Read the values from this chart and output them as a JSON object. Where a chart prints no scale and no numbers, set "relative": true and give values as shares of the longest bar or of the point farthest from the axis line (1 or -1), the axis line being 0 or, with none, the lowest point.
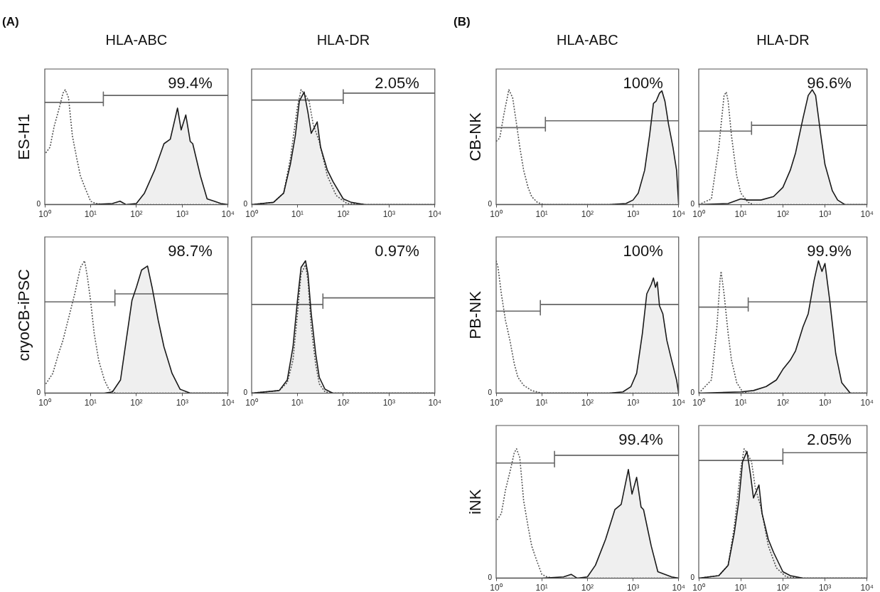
{
  "chart_data": [
    {
      "type": "area",
      "title": "HLA-ABC",
      "ylabel": "ES-H1",
      "relative": true,
      "log": "x",
      "marker": "none",
      "annotations": [
        "0",
        "(A)",
        "99.4%"
      ],
      "xlim": [
        1,
        10000
      ],
      "xticks": [
        {
          "value": 1,
          "label": "10⁰"
        },
        {
          "value": 10,
          "label": "10¹"
        },
        {
          "value": 100,
          "label": "10²"
        },
        {
          "value": 1000,
          "label": "10³"
        },
        {
          "value": 10000,
          "label": "10⁴"
        }
      ],
      "series": [
        {
          "type": "area",
          "color": "#1a1a1a",
          "x": [
            1,
            10,
            30,
            44,
            60,
            100,
            150,
            250,
            400,
            550,
            790,
            950,
            1200,
            1500,
            1700,
            2500,
            3500,
            5000,
            7000,
            10000
          ],
          "values": [
            0,
            0,
            0.01,
            0.03,
            0,
            0.01,
            0.1,
            0.3,
            0.53,
            0.57,
            0.84,
            0.65,
            0.78,
            0.55,
            0.53,
            0.25,
            0.05,
            0.03,
            0.01,
            0
          ]
        },
        {
          "type": "line",
          "color": "#555555",
          "line_style": "dotted",
          "x": [
            1.05,
            1.3,
            1.6,
            2,
            2.5,
            2.8,
            3.3,
            4,
            5,
            6,
            7.5,
            10,
            13,
            20,
            10000
          ],
          "values": [
            0.45,
            0.5,
            0.68,
            0.82,
            0.97,
            1,
            0.93,
            0.6,
            0.4,
            0.25,
            0.15,
            0.03,
            0.01,
            0,
            0
          ]
        },
        {
          "type": "line",
          "color": "#666666",
          "x": [
            1,
            19,
            19,
            19,
            19,
            19,
            19,
            10000
          ],
          "values": [
            0.89,
            0.89,
            0.86,
            0.92,
            0.92,
            0.98,
            0.95,
            0.95
          ]
        }
      ]
    },
    {
      "type": "area",
      "title": "HLA-DR",
      "relative": true,
      "log": "x",
      "marker": "none",
      "annotations": [
        "0",
        "2.05%"
      ],
      "xlim": [
        1,
        10000
      ],
      "xticks": [
        {
          "value": 1,
          "label": "10⁰"
        },
        {
          "value": 10,
          "label": "10¹"
        },
        {
          "value": 100,
          "label": "10²"
        },
        {
          "value": 1000,
          "label": "10³"
        },
        {
          "value": 10000,
          "label": "10⁴"
        }
      ],
      "series": [
        {
          "type": "area",
          "color": "#1a1a1a",
          "x": [
            1,
            3,
            5,
            7,
            9,
            11,
            14,
            17,
            20,
            27,
            32,
            45,
            60,
            100,
            150,
            300,
            10000
          ],
          "values": [
            0,
            0.02,
            0.1,
            0.35,
            0.6,
            0.9,
            0.98,
            0.8,
            0.62,
            0.72,
            0.5,
            0.3,
            0.2,
            0.05,
            0.02,
            0,
            0
          ]
        },
        {
          "type": "line",
          "color": "#555555",
          "line_style": "dotted",
          "x": [
            1,
            3,
            5,
            7,
            10,
            12,
            15,
            18,
            22,
            30,
            45,
            70,
            120,
            300,
            10000
          ],
          "values": [
            0,
            0.02,
            0.1,
            0.4,
            0.85,
            1,
            0.95,
            0.9,
            0.7,
            0.55,
            0.25,
            0.08,
            0.01,
            0,
            0
          ]
        },
        {
          "type": "line",
          "color": "#666666",
          "x": [
            1,
            100,
            100,
            100,
            100,
            100,
            100,
            10000
          ],
          "values": [
            0.91,
            0.91,
            0.88,
            0.94,
            0.94,
            1,
            0.97,
            0.97
          ]
        }
      ]
    },
    {
      "type": "area",
      "title": "HLA-ABC",
      "ylabel": "CB-NK",
      "relative": true,
      "log": "x",
      "marker": "none",
      "annotations": [
        "0",
        "(B)",
        "100%"
      ],
      "xlim": [
        1,
        10000
      ],
      "xticks": [
        {
          "value": 1,
          "label": "10⁰"
        },
        {
          "value": 10,
          "label": "10¹"
        },
        {
          "value": 100,
          "label": "10²"
        },
        {
          "value": 1000,
          "label": "10³"
        },
        {
          "value": 10000,
          "label": "10⁴"
        }
      ],
      "series": [
        {
          "type": "area",
          "color": "#1a1a1a",
          "x": [
            1,
            300,
            700,
            1000,
            1300,
            1800,
            2300,
            2800,
            3200,
            3800,
            4300,
            5000,
            6000,
            7500,
            9000,
            10000
          ],
          "values": [
            0,
            0,
            0.01,
            0.04,
            0.1,
            0.3,
            0.6,
            0.88,
            0.9,
            0.97,
            0.99,
            0.9,
            0.7,
            0.5,
            0.3,
            0
          ]
        },
        {
          "type": "line",
          "color": "#555555",
          "line_style": "dotted",
          "x": [
            1,
            1.2,
            1.5,
            1.9,
            2.3,
            2.8,
            3.3,
            4,
            5,
            6,
            8,
            11,
            10000
          ],
          "values": [
            0.55,
            0.58,
            0.8,
            1,
            0.93,
            0.7,
            0.5,
            0.3,
            0.15,
            0.07,
            0.02,
            0,
            0
          ]
        },
        {
          "type": "line",
          "color": "#666666",
          "x": [
            1,
            12,
            12,
            12,
            12,
            12,
            12,
            10000
          ],
          "values": [
            0.67,
            0.67,
            0.64,
            0.7,
            0.7,
            0.76,
            0.73,
            0.73
          ]
        }
      ]
    },
    {
      "type": "area",
      "title": "HLA-DR",
      "relative": true,
      "log": "x",
      "marker": "none",
      "annotations": [
        "0",
        "96.6%"
      ],
      "xlim": [
        1,
        10000
      ],
      "xticks": [
        {
          "value": 1,
          "label": "10⁰"
        },
        {
          "value": 10,
          "label": "10¹"
        },
        {
          "value": 100,
          "label": "10²"
        },
        {
          "value": 1000,
          "label": "10³"
        },
        {
          "value": 10000,
          "label": "10⁴"
        }
      ],
      "series": [
        {
          "type": "area",
          "color": "#1a1a1a",
          "x": [
            1,
            5,
            10,
            15,
            30,
            60,
            100,
            150,
            200,
            300,
            400,
            500,
            600,
            800,
            1000,
            1500,
            2000,
            3000,
            10000
          ],
          "values": [
            0,
            0.01,
            0.05,
            0.04,
            0.04,
            0.07,
            0.15,
            0.3,
            0.45,
            0.75,
            0.95,
            1,
            0.95,
            0.6,
            0.35,
            0.12,
            0.04,
            0,
            0
          ]
        },
        {
          "type": "line",
          "color": "#555555",
          "line_style": "dotted",
          "x": [
            1,
            2,
            3,
            4,
            4.5,
            5,
            6,
            8,
            10,
            15,
            20,
            10000
          ],
          "values": [
            0,
            0.05,
            0.5,
            0.95,
            0.98,
            0.9,
            0.6,
            0.25,
            0.1,
            0.02,
            0,
            0
          ]
        },
        {
          "type": "line",
          "color": "#666666",
          "x": [
            1,
            18,
            18,
            18,
            18,
            18,
            18,
            10000
          ],
          "values": [
            0.64,
            0.64,
            0.61,
            0.67,
            0.67,
            0.72,
            0.69,
            0.69
          ]
        }
      ]
    },
    {
      "type": "area",
      "ylabel": "cryoCB-iPSC",
      "relative": true,
      "log": "x",
      "marker": "none",
      "annotations": [
        "0",
        "98.7%"
      ],
      "xlim": [
        1,
        10000
      ],
      "xticks": [
        {
          "value": 1,
          "label": "10⁰"
        },
        {
          "value": 10,
          "label": "10¹"
        },
        {
          "value": 100,
          "label": "10²"
        },
        {
          "value": 1000,
          "label": "10³"
        },
        {
          "value": 10000,
          "label": "10⁴"
        }
      ],
      "series": [
        {
          "type": "area",
          "color": "#1a1a1a",
          "x": [
            1,
            20,
            30,
            45,
            60,
            80,
            100,
            130,
            175,
            220,
            300,
            400,
            600,
            900,
            1500,
            10000
          ],
          "values": [
            0,
            0,
            0.01,
            0.1,
            0.4,
            0.7,
            0.8,
            0.93,
            0.96,
            0.8,
            0.55,
            0.35,
            0.15,
            0.03,
            0,
            0
          ]
        },
        {
          "type": "line",
          "color": "#555555",
          "line_style": "dotted",
          "x": [
            1.05,
            1.5,
            2,
            2.5,
            3.5,
            4.5,
            6,
            7.4,
            8.5,
            10,
            12,
            15,
            20,
            25,
            35,
            10000
          ],
          "values": [
            0.07,
            0.15,
            0.3,
            0.4,
            0.6,
            0.75,
            0.95,
            1,
            0.88,
            0.7,
            0.45,
            0.25,
            0.1,
            0.03,
            0,
            0
          ]
        },
        {
          "type": "line",
          "color": "#666666",
          "x": [
            1,
            34,
            34,
            34,
            34,
            34,
            34,
            10000
          ],
          "values": [
            0.69,
            0.69,
            0.66,
            0.72,
            0.72,
            0.78,
            0.75,
            0.75
          ]
        }
      ]
    },
    {
      "type": "area",
      "relative": true,
      "log": "x",
      "marker": "none",
      "annotations": [
        "0",
        "0.97%"
      ],
      "xlim": [
        1,
        10000
      ],
      "xticks": [
        {
          "value": 1,
          "label": "10⁰"
        },
        {
          "value": 10,
          "label": "10¹"
        },
        {
          "value": 100,
          "label": "10²"
        },
        {
          "value": 1000,
          "label": "10³"
        },
        {
          "value": 10000,
          "label": "10⁴"
        }
      ],
      "series": [
        {
          "type": "area",
          "color": "#1a1a1a",
          "x": [
            1,
            4,
            6,
            8,
            10,
            12,
            15,
            17,
            20,
            25,
            30,
            40,
            60,
            10000
          ],
          "values": [
            0,
            0.02,
            0.1,
            0.35,
            0.7,
            0.95,
            1,
            0.9,
            0.6,
            0.3,
            0.12,
            0.03,
            0,
            0
          ]
        },
        {
          "type": "line",
          "color": "#555555",
          "line_style": "dotted",
          "x": [
            1,
            4,
            6,
            8,
            10,
            12,
            15,
            17,
            20,
            25,
            30,
            40,
            60,
            10000
          ],
          "values": [
            0,
            0.02,
            0.08,
            0.25,
            0.6,
            0.9,
            0.97,
            0.85,
            0.5,
            0.22,
            0.07,
            0.01,
            0,
            0
          ]
        },
        {
          "type": "line",
          "color": "#666666",
          "x": [
            1,
            36,
            36,
            36,
            36,
            36,
            36,
            10000
          ],
          "values": [
            0.67,
            0.67,
            0.64,
            0.7,
            0.7,
            0.75,
            0.72,
            0.72
          ]
        }
      ]
    },
    {
      "type": "area",
      "ylabel": "PB-NK",
      "relative": true,
      "log": "x",
      "marker": "none",
      "annotations": [
        "0",
        "100%"
      ],
      "xlim": [
        1,
        10000
      ],
      "xticks": [
        {
          "value": 1,
          "label": "10⁰"
        },
        {
          "value": 10,
          "label": "10¹"
        },
        {
          "value": 100,
          "label": "10²"
        },
        {
          "value": 1000,
          "label": "10³"
        },
        {
          "value": 10000,
          "label": "10⁴"
        }
      ],
      "series": [
        {
          "type": "area",
          "color": "#1a1a1a",
          "x": [
            1,
            300,
            600,
            900,
            1200,
            1600,
            2000,
            2500,
            2800,
            3100,
            3400,
            3800,
            4500,
            5500,
            7000,
            9000,
            10000
          ],
          "values": [
            0,
            0,
            0.01,
            0.05,
            0.15,
            0.45,
            0.75,
            0.82,
            0.87,
            0.8,
            0.84,
            0.66,
            0.6,
            0.4,
            0.25,
            0.1,
            0
          ]
        },
        {
          "type": "line",
          "color": "#555555",
          "line_style": "dotted",
          "x": [
            1,
            1.1,
            1.3,
            1.6,
            2,
            2.5,
            3,
            4,
            6,
            10,
            10000
          ],
          "values": [
            1,
            0.95,
            0.75,
            0.55,
            0.4,
            0.22,
            0.12,
            0.06,
            0.02,
            0,
            0
          ]
        },
        {
          "type": "line",
          "color": "#666666",
          "x": [
            1,
            9.3,
            9.3,
            9.3,
            9.3,
            9.3,
            9.3,
            10000
          ],
          "values": [
            0.62,
            0.62,
            0.59,
            0.65,
            0.65,
            0.7,
            0.67,
            0.67
          ]
        }
      ]
    },
    {
      "type": "area",
      "relative": true,
      "log": "x",
      "marker": "none",
      "annotations": [
        "0",
        "99.9%"
      ],
      "xlim": [
        1,
        10000
      ],
      "xticks": [
        {
          "value": 1,
          "label": "10⁰"
        },
        {
          "value": 10,
          "label": "10¹"
        },
        {
          "value": 100,
          "label": "10²"
        },
        {
          "value": 1000,
          "label": "10³"
        },
        {
          "value": 10000,
          "label": "10⁴"
        }
      ],
      "series": [
        {
          "type": "area",
          "color": "#1a1a1a",
          "x": [
            1,
            10,
            20,
            40,
            70,
            100,
            150,
            200,
            300,
            400,
            550,
            700,
            850,
            1000,
            1300,
            1800,
            2500,
            4000,
            10000
          ],
          "values": [
            0,
            0.01,
            0.02,
            0.05,
            0.1,
            0.18,
            0.25,
            0.32,
            0.5,
            0.6,
            0.85,
            1,
            0.92,
            0.98,
            0.7,
            0.3,
            0.08,
            0,
            0
          ]
        },
        {
          "type": "line",
          "color": "#555555",
          "line_style": "dotted",
          "x": [
            1,
            2,
            2.7,
            3.2,
            3.4,
            4,
            5,
            6,
            8,
            11,
            15,
            10000
          ],
          "values": [
            0,
            0.1,
            0.5,
            0.85,
            0.92,
            0.75,
            0.45,
            0.25,
            0.08,
            0.01,
            0,
            0
          ]
        },
        {
          "type": "line",
          "color": "#666666",
          "x": [
            1,
            15,
            15,
            15,
            15,
            15,
            15,
            10000
          ],
          "values": [
            0.65,
            0.65,
            0.62,
            0.68,
            0.68,
            0.72,
            0.69,
            0.69
          ]
        }
      ]
    },
    {
      "type": "area",
      "ylabel": "iNK",
      "relative": true,
      "log": "x",
      "marker": "none",
      "annotations": [
        "0",
        "99.4%"
      ],
      "xlim": [
        1,
        10000
      ],
      "xticks": [
        {
          "value": 1,
          "label": "10⁰"
        },
        {
          "value": 10,
          "label": "10¹"
        },
        {
          "value": 100,
          "label": "10²"
        },
        {
          "value": 1000,
          "label": "10³"
        },
        {
          "value": 10000,
          "label": "10⁴"
        }
      ],
      "series": [
        {
          "type": "area",
          "color": "#1a1a1a",
          "x": [
            1,
            10,
            30,
            44,
            60,
            100,
            150,
            250,
            400,
            550,
            790,
            950,
            1200,
            1500,
            1700,
            2500,
            3500,
            5000,
            7000,
            10000
          ],
          "values": [
            0,
            0,
            0.01,
            0.03,
            0,
            0.01,
            0.1,
            0.3,
            0.53,
            0.57,
            0.84,
            0.65,
            0.78,
            0.55,
            0.53,
            0.25,
            0.05,
            0.03,
            0.01,
            0
          ]
        },
        {
          "type": "line",
          "color": "#555555",
          "line_style": "dotted",
          "x": [
            1.05,
            1.3,
            1.6,
            2,
            2.5,
            2.8,
            3.3,
            4,
            5,
            6,
            7.5,
            10,
            13,
            20,
            10000
          ],
          "values": [
            0.45,
            0.5,
            0.68,
            0.82,
            0.97,
            1,
            0.93,
            0.6,
            0.4,
            0.25,
            0.15,
            0.03,
            0.01,
            0,
            0
          ]
        },
        {
          "type": "line",
          "color": "#666666",
          "x": [
            1,
            19,
            19,
            19,
            19,
            19,
            19,
            10000
          ],
          "values": [
            0.89,
            0.89,
            0.86,
            0.92,
            0.92,
            0.98,
            0.95,
            0.95
          ]
        }
      ]
    },
    {
      "type": "area",
      "relative": true,
      "log": "x",
      "marker": "none",
      "annotations": [
        "0",
        "2.05%"
      ],
      "xlim": [
        1,
        10000
      ],
      "xticks": [
        {
          "value": 1,
          "label": "10⁰"
        },
        {
          "value": 10,
          "label": "10¹"
        },
        {
          "value": 100,
          "label": "10²"
        },
        {
          "value": 1000,
          "label": "10³"
        },
        {
          "value": 10000,
          "label": "10⁴"
        }
      ],
      "series": [
        {
          "type": "area",
          "color": "#1a1a1a",
          "x": [
            1,
            3,
            5,
            7,
            9,
            11,
            14,
            17,
            20,
            27,
            32,
            45,
            60,
            100,
            150,
            300,
            10000
          ],
          "values": [
            0,
            0.02,
            0.1,
            0.35,
            0.6,
            0.9,
            0.98,
            0.8,
            0.62,
            0.72,
            0.5,
            0.3,
            0.2,
            0.05,
            0.02,
            0,
            0
          ]
        },
        {
          "type": "line",
          "color": "#555555",
          "line_style": "dotted",
          "x": [
            1,
            3,
            5,
            7,
            10,
            12,
            15,
            18,
            22,
            30,
            45,
            70,
            120,
            300,
            10000
          ],
          "values": [
            0,
            0.02,
            0.1,
            0.4,
            0.85,
            1,
            0.95,
            0.9,
            0.7,
            0.55,
            0.25,
            0.08,
            0.01,
            0,
            0
          ]
        },
        {
          "type": "line",
          "color": "#666666",
          "x": [
            1,
            100,
            100,
            100,
            100,
            100,
            100,
            10000
          ],
          "values": [
            0.91,
            0.91,
            0.88,
            0.94,
            0.94,
            1,
            0.97,
            0.97
          ]
        }
      ]
    }
  ]
}
